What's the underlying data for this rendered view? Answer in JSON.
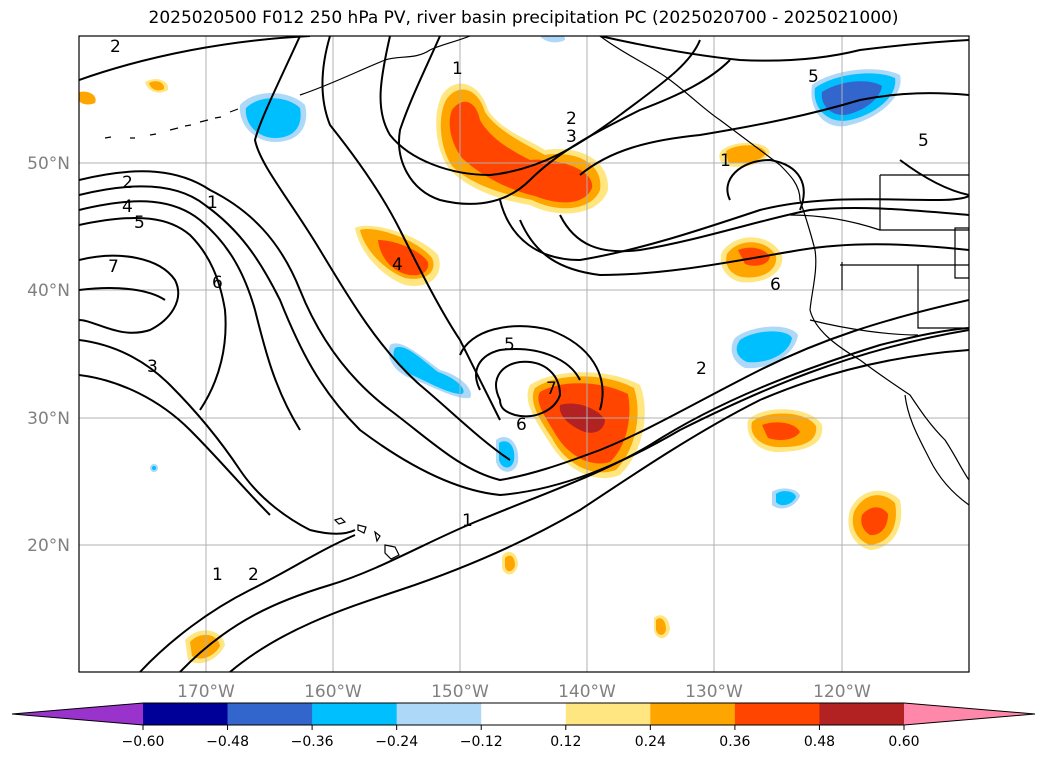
{
  "title": "2025020500 F012 250 hPa PV, river basin precipitation PC (2025020700 - 2025021000)",
  "map": {
    "lon_range": [
      -180,
      -110
    ],
    "lat_range": [
      10,
      60
    ],
    "lat_labels": [
      "20°N",
      "30°N",
      "40°N",
      "50°N"
    ],
    "lon_labels": [
      "170°W",
      "160°W",
      "150°W",
      "140°W",
      "130°W",
      "120°W"
    ],
    "grid": true,
    "pv_contour_labels": [
      "2",
      "1",
      "2",
      "3",
      "5",
      "1",
      "5",
      "2",
      "4",
      "5",
      "1",
      "7",
      "6",
      "4",
      "6",
      "5",
      "7",
      "6",
      "3",
      "2",
      "1",
      "1",
      "2"
    ]
  },
  "colorbar": {
    "ticks": [
      "−0.60",
      "−0.48",
      "−0.36",
      "−0.24",
      "−0.12",
      "0.12",
      "0.24",
      "0.36",
      "0.48",
      "0.60"
    ],
    "under_color": "#9933cc",
    "colors": [
      "#000099",
      "#3366cc",
      "#00bfff",
      "#add8f7",
      "#ffffff",
      "#ffe680",
      "#ffa500",
      "#ff4500",
      "#b22222"
    ],
    "over_color": "#ff88aa"
  }
}
